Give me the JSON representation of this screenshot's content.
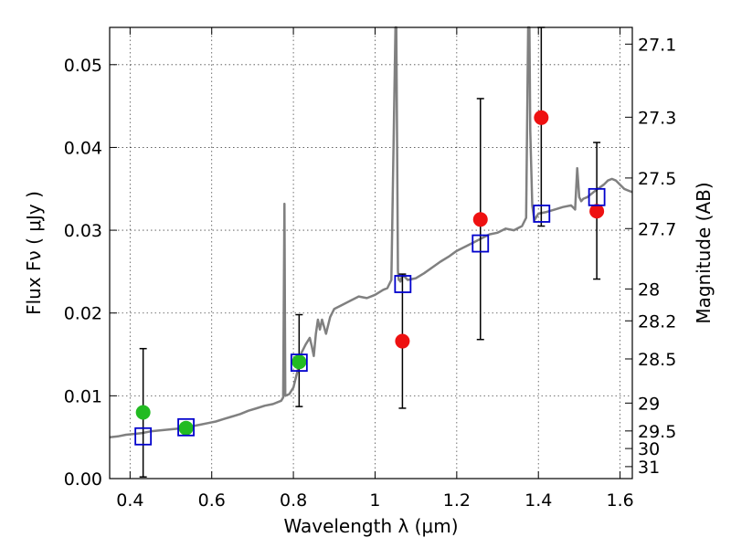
{
  "chart_data": {
    "type": "scatter",
    "title": "",
    "xlabel": "Wavelength  λ (μm)",
    "ylabel": "Flux  Fν  ( μJy )",
    "y2label": "Magnitude (AB)",
    "xlim": [
      0.35,
      1.63
    ],
    "ylim": [
      0.0,
      0.0545
    ],
    "grid": true,
    "x_ticks": [
      0.4,
      0.6,
      0.8,
      1.0,
      1.2,
      1.4,
      1.6
    ],
    "x_tick_labels": [
      "0.4",
      "0.6",
      "0.8",
      "1",
      "1.2",
      "1.4",
      "1.6"
    ],
    "y_ticks": [
      0.0,
      0.01,
      0.02,
      0.03,
      0.04,
      0.05
    ],
    "y_tick_labels": [
      "0.00",
      "0.01",
      "0.02",
      "0.03",
      "0.04",
      "0.05"
    ],
    "y2_ticks": [
      27.1,
      27.3,
      27.5,
      27.7,
      28,
      28.2,
      28.5,
      29,
      29.5,
      30,
      31
    ],
    "y2_tick_labels": [
      "27.1",
      "27.3",
      "27.5",
      "27.7",
      "28",
      "28.2",
      "28.5",
      "29",
      "29.5",
      "30",
      "31"
    ],
    "colors": {
      "spectrum": "#808080",
      "green_points": "#22bb22",
      "red_points": "#ee1111",
      "model_boxes": "#0000cc",
      "error_bars": "#000000"
    },
    "series": [
      {
        "kind": "model-spectrum",
        "x": [
          0.35,
          0.37,
          0.39,
          0.41,
          0.43,
          0.45,
          0.47,
          0.49,
          0.51,
          0.53,
          0.55,
          0.57,
          0.59,
          0.61,
          0.63,
          0.65,
          0.67,
          0.69,
          0.71,
          0.73,
          0.75,
          0.77,
          0.775,
          0.778,
          0.78,
          0.79,
          0.8,
          0.81,
          0.815,
          0.82,
          0.83,
          0.84,
          0.845,
          0.85,
          0.855,
          0.86,
          0.865,
          0.87,
          0.88,
          0.89,
          0.9,
          0.92,
          0.94,
          0.96,
          0.98,
          1.0,
          1.02,
          1.03,
          1.04,
          1.05,
          1.052,
          1.054,
          1.056,
          1.058,
          1.06,
          1.062,
          1.065,
          1.07,
          1.08,
          1.1,
          1.12,
          1.14,
          1.16,
          1.18,
          1.2,
          1.22,
          1.24,
          1.26,
          1.28,
          1.3,
          1.32,
          1.34,
          1.36,
          1.37,
          1.375,
          1.378,
          1.38,
          1.385,
          1.39,
          1.4,
          1.42,
          1.44,
          1.46,
          1.48,
          1.49,
          1.495,
          1.5,
          1.505,
          1.51,
          1.52,
          1.54,
          1.56,
          1.57,
          1.58,
          1.59,
          1.6,
          1.61,
          1.62,
          1.63
        ],
        "y": [
          0.005,
          0.0051,
          0.0053,
          0.0054,
          0.0055,
          0.0057,
          0.0058,
          0.0059,
          0.006,
          0.0061,
          0.0063,
          0.0065,
          0.0067,
          0.0069,
          0.0072,
          0.0075,
          0.0078,
          0.0082,
          0.0085,
          0.0088,
          0.009,
          0.0094,
          0.0098,
          0.0332,
          0.01,
          0.0102,
          0.011,
          0.013,
          0.014,
          0.0152,
          0.0162,
          0.017,
          0.016,
          0.0148,
          0.0175,
          0.0192,
          0.018,
          0.0192,
          0.0175,
          0.0195,
          0.0205,
          0.021,
          0.0215,
          0.022,
          0.0218,
          0.0222,
          0.0228,
          0.023,
          0.024,
          0.0545,
          0.0545,
          0.04,
          0.025,
          0.024,
          0.024,
          0.0238,
          0.0243,
          0.0245,
          0.024,
          0.0242,
          0.0248,
          0.0255,
          0.0262,
          0.0268,
          0.0275,
          0.028,
          0.0285,
          0.029,
          0.0295,
          0.0297,
          0.0302,
          0.03,
          0.0305,
          0.0315,
          0.0545,
          0.0545,
          0.042,
          0.033,
          0.0312,
          0.032,
          0.0322,
          0.0325,
          0.0328,
          0.033,
          0.0325,
          0.0375,
          0.034,
          0.0335,
          0.0338,
          0.034,
          0.0348,
          0.0355,
          0.036,
          0.0362,
          0.036,
          0.0355,
          0.035,
          0.0348,
          0.0346
        ]
      },
      {
        "kind": "green-points",
        "points": [
          {
            "x": 0.432,
            "y": 0.008,
            "err_low": 0.0002,
            "err_high": 0.0157
          },
          {
            "x": 0.537,
            "y": 0.0061
          },
          {
            "x": 0.814,
            "y": 0.0141,
            "err_low": 0.0087,
            "err_high": 0.0198
          }
        ]
      },
      {
        "kind": "red-points",
        "points": [
          {
            "x": 1.067,
            "y": 0.0166,
            "err_low": 0.0085,
            "err_high": 0.0247
          },
          {
            "x": 1.258,
            "y": 0.0313,
            "err_low": 0.0168,
            "err_high": 0.0459
          },
          {
            "x": 1.407,
            "y": 0.0436,
            "err_low": 0.0305,
            "err_high": 0.0545
          },
          {
            "x": 1.543,
            "y": 0.0323,
            "err_low": 0.0241,
            "err_high": 0.0406
          }
        ]
      },
      {
        "kind": "model-boxes",
        "points": [
          {
            "x": 0.432,
            "y": 0.0051
          },
          {
            "x": 0.537,
            "y": 0.0062
          },
          {
            "x": 0.814,
            "y": 0.014
          },
          {
            "x": 1.068,
            "y": 0.0235
          },
          {
            "x": 1.258,
            "y": 0.0284
          },
          {
            "x": 1.408,
            "y": 0.032
          },
          {
            "x": 1.543,
            "y": 0.034
          }
        ]
      }
    ]
  }
}
